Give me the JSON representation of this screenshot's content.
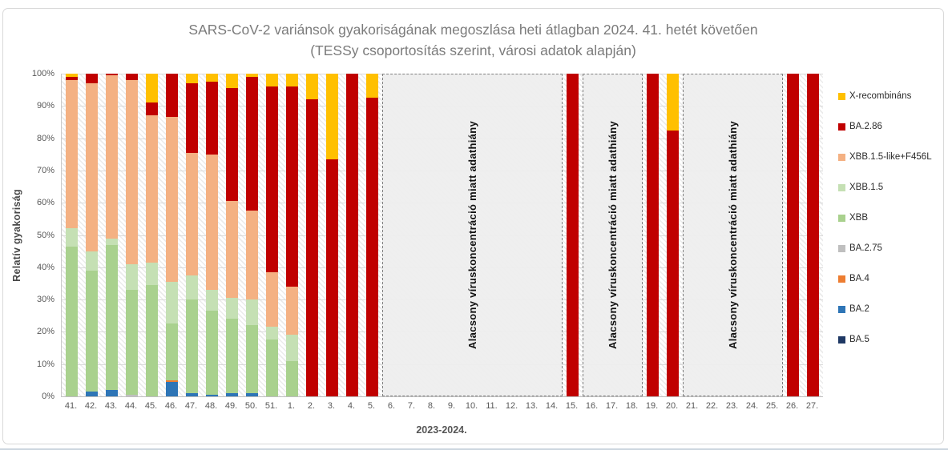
{
  "title": "SARS-CoV-2 variánsok gyakoriságának megoszlása heti átlagban 2024. 41. hetét követően",
  "subtitle": "(TESSy csoportosítás szerint, városi adatok alapján)",
  "y_axis": {
    "title": "Relatív gyakoriság",
    "tick_labels": [
      "100%",
      "90%",
      "80%",
      "70%",
      "60%",
      "50%",
      "40%",
      "30%",
      "20%",
      "10%",
      "0%"
    ]
  },
  "x_axis": {
    "title": "2023-2024.",
    "labels": [
      "41.",
      "42.",
      "43.",
      "44.",
      "45.",
      "46.",
      "47.",
      "48.",
      "49.",
      "50.",
      "51.",
      "1.",
      "2.",
      "3.",
      "4.",
      "5.",
      "6.",
      "7.",
      "8.",
      "9.",
      "10.",
      "11.",
      "12.",
      "13.",
      "14.",
      "15.",
      "16.",
      "17.",
      "18.",
      "19.",
      "20.",
      "21.",
      "22.",
      "23.",
      "24.",
      "25.",
      "26.",
      "27."
    ]
  },
  "missing_regions": [
    {
      "text": "Alacsony víruskoncentráció miatt adathiány",
      "start_index": 16,
      "span": 9
    },
    {
      "text": "Alacsony víruskoncentráció miatt adathiány",
      "start_index": 26,
      "span": 3
    },
    {
      "text": "Alacsony víruskoncentráció miatt adathiány",
      "start_index": 31,
      "span": 5
    }
  ],
  "colors": {
    "grid": "#d9d9d9",
    "axis": "#bfbfbf",
    "missing_fill": "#eeeeee",
    "title_text": "#7b7b7b"
  },
  "chart_data": {
    "type": "bar",
    "subtype": "stacked-100-percent",
    "title": "SARS-CoV-2 variánsok gyakoriságának megoszlása heti átlagban 2024. 41. hetét követően (TESSy csoportosítás szerint, városi adatok alapján)",
    "xlabel": "2023-2024.",
    "ylabel": "Relatív gyakoriság",
    "ylim": [
      0,
      100
    ],
    "grid": true,
    "legend_position": "right",
    "categories": [
      "41.",
      "42.",
      "43.",
      "44.",
      "45.",
      "46.",
      "47.",
      "48.",
      "49.",
      "50.",
      "51.",
      "1.",
      "2.",
      "3.",
      "4.",
      "5.",
      "6.",
      "7.",
      "8.",
      "9.",
      "10.",
      "11.",
      "12.",
      "13.",
      "14.",
      "15.",
      "16.",
      "17.",
      "18.",
      "19.",
      "20.",
      "21.",
      "22.",
      "23.",
      "24.",
      "25.",
      "26.",
      "27."
    ],
    "note": "null = no data (Alacsony víruskoncentráció miatt adathiány); values are percent; series listed in legend order top-to-bottom, stacked bottom-to-top in reverse order",
    "series": [
      {
        "name": "X-recombináns",
        "color": "#FFC000",
        "values": [
          1,
          0,
          0,
          0,
          9,
          0,
          3,
          2.5,
          4.5,
          1,
          4,
          4,
          8,
          26.5,
          0,
          7.5,
          null,
          null,
          null,
          null,
          null,
          null,
          null,
          null,
          null,
          0,
          null,
          null,
          null,
          0,
          17.5,
          null,
          null,
          null,
          null,
          null,
          0,
          0
        ]
      },
      {
        "name": "BA.2.86",
        "color": "#C00000",
        "values": [
          1,
          3,
          0.5,
          2,
          4,
          13.5,
          21.5,
          22.5,
          35,
          41.5,
          57.5,
          62,
          92,
          73.5,
          100,
          92.5,
          null,
          null,
          null,
          null,
          null,
          null,
          null,
          null,
          null,
          100,
          null,
          null,
          null,
          100,
          82.5,
          null,
          null,
          null,
          null,
          null,
          100,
          100
        ]
      },
      {
        "name": "XBB.1.5-like+F456L",
        "color": "#F4B183",
        "values": [
          46,
          52,
          50.5,
          57,
          45.5,
          51,
          38,
          42,
          30,
          27.5,
          17,
          15,
          0,
          0,
          0,
          0,
          null,
          null,
          null,
          null,
          null,
          null,
          null,
          null,
          null,
          0,
          null,
          null,
          null,
          0,
          0,
          null,
          null,
          null,
          null,
          null,
          0,
          0
        ]
      },
      {
        "name": "XBB.1.5",
        "color": "#C5E0B4",
        "values": [
          5.5,
          6,
          2,
          8,
          7,
          13,
          7.5,
          6.5,
          6.5,
          8,
          4,
          8,
          0,
          0,
          0,
          0,
          null,
          null,
          null,
          null,
          null,
          null,
          null,
          null,
          null,
          0,
          null,
          null,
          null,
          0,
          0,
          null,
          null,
          null,
          null,
          null,
          0,
          0
        ]
      },
      {
        "name": "XBB",
        "color": "#A9D18E",
        "values": [
          46.5,
          37.5,
          45,
          32.5,
          34.5,
          17.5,
          29,
          26,
          23,
          21,
          17.5,
          11,
          0,
          0,
          0,
          0,
          null,
          null,
          null,
          null,
          null,
          null,
          null,
          null,
          null,
          0,
          null,
          null,
          null,
          0,
          0,
          null,
          null,
          null,
          null,
          null,
          0,
          0
        ]
      },
      {
        "name": "BA.2.75",
        "color": "#BFBFBF",
        "values": [
          0,
          0,
          0,
          0.5,
          0,
          0,
          0,
          0,
          0,
          0,
          0,
          0,
          0,
          0,
          0,
          0,
          null,
          null,
          null,
          null,
          null,
          null,
          null,
          null,
          null,
          0,
          null,
          null,
          null,
          0,
          0,
          null,
          null,
          null,
          null,
          null,
          0,
          0
        ]
      },
      {
        "name": "BA.4",
        "color": "#ED7D31",
        "values": [
          0,
          0,
          0,
          0,
          0,
          0.5,
          0,
          0,
          0,
          0,
          0,
          0,
          0,
          0,
          0,
          0,
          null,
          null,
          null,
          null,
          null,
          null,
          null,
          null,
          null,
          0,
          null,
          null,
          null,
          0,
          0,
          null,
          null,
          null,
          null,
          null,
          0,
          0
        ]
      },
      {
        "name": "BA.2",
        "color": "#2E75B6",
        "values": [
          0,
          1.5,
          2,
          0,
          0,
          4.5,
          1,
          0.5,
          1,
          1,
          0,
          0,
          0,
          0,
          0,
          0,
          null,
          null,
          null,
          null,
          null,
          null,
          null,
          null,
          null,
          0,
          null,
          null,
          null,
          0,
          0,
          null,
          null,
          null,
          null,
          null,
          0,
          0
        ]
      },
      {
        "name": "BA.5",
        "color": "#1F3864",
        "values": [
          0,
          0,
          0,
          0,
          0,
          0,
          0,
          0,
          0,
          0,
          0,
          0,
          0,
          0,
          0,
          0,
          null,
          null,
          null,
          null,
          null,
          null,
          null,
          null,
          null,
          0,
          null,
          null,
          null,
          0,
          0,
          null,
          null,
          null,
          null,
          null,
          0,
          0
        ]
      }
    ]
  }
}
